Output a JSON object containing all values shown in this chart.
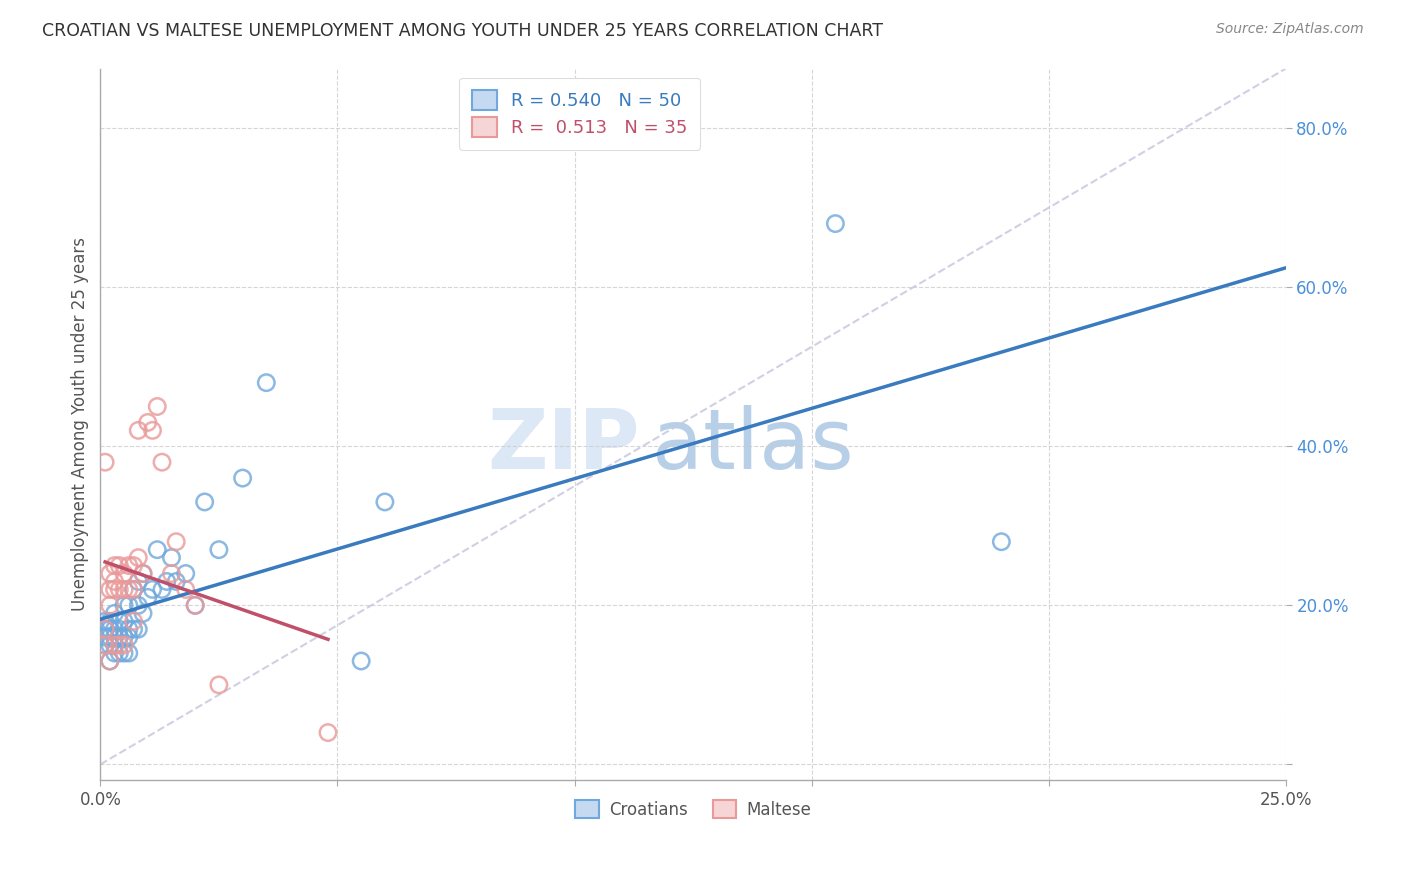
{
  "title": "CROATIAN VS MALTESE UNEMPLOYMENT AMONG YOUTH UNDER 25 YEARS CORRELATION CHART",
  "source": "Source: ZipAtlas.com",
  "ylabel": "Unemployment Among Youth under 25 years",
  "xlim": [
    0.0,
    0.25
  ],
  "ylim": [
    -0.02,
    0.875
  ],
  "croatians_color": "#6fa8dc",
  "maltese_color": "#ea9999",
  "croatians_line_color": "#3a7abf",
  "maltese_line_color": "#c0506a",
  "legend_croatians_label": "Croatians",
  "legend_maltese_label": "Maltese",
  "R_croatians": "0.540",
  "N_croatians": "50",
  "R_maltese": "0.513",
  "N_maltese": "35",
  "bg_color": "#ffffff",
  "grid_color": "#cccccc",
  "title_color": "#333333",
  "source_color": "#888888",
  "axis_label_color": "#555555",
  "right_axis_color": "#4a90d9",
  "watermark_zip_color": "#ddeeff",
  "watermark_atlas_color": "#c0d8ee",
  "croatians_x": [
    0.001,
    0.001,
    0.001,
    0.001,
    0.002,
    0.002,
    0.002,
    0.002,
    0.002,
    0.003,
    0.003,
    0.003,
    0.003,
    0.003,
    0.004,
    0.004,
    0.004,
    0.004,
    0.005,
    0.005,
    0.005,
    0.005,
    0.006,
    0.006,
    0.006,
    0.006,
    0.007,
    0.007,
    0.008,
    0.008,
    0.008,
    0.009,
    0.009,
    0.01,
    0.011,
    0.012,
    0.013,
    0.014,
    0.015,
    0.016,
    0.018,
    0.02,
    0.022,
    0.025,
    0.03,
    0.035,
    0.055,
    0.06,
    0.155,
    0.19
  ],
  "croatians_y": [
    0.15,
    0.16,
    0.17,
    0.18,
    0.13,
    0.15,
    0.16,
    0.17,
    0.18,
    0.14,
    0.15,
    0.16,
    0.17,
    0.19,
    0.14,
    0.16,
    0.17,
    0.18,
    0.14,
    0.16,
    0.18,
    0.2,
    0.14,
    0.16,
    0.17,
    0.2,
    0.17,
    0.22,
    0.17,
    0.2,
    0.23,
    0.19,
    0.24,
    0.21,
    0.22,
    0.27,
    0.22,
    0.23,
    0.26,
    0.23,
    0.24,
    0.2,
    0.33,
    0.27,
    0.36,
    0.48,
    0.13,
    0.33,
    0.68,
    0.28
  ],
  "maltese_x": [
    0.001,
    0.001,
    0.001,
    0.002,
    0.002,
    0.002,
    0.002,
    0.003,
    0.003,
    0.003,
    0.003,
    0.004,
    0.004,
    0.004,
    0.005,
    0.005,
    0.005,
    0.006,
    0.006,
    0.007,
    0.007,
    0.007,
    0.008,
    0.008,
    0.009,
    0.01,
    0.011,
    0.012,
    0.013,
    0.015,
    0.016,
    0.018,
    0.02,
    0.025,
    0.048
  ],
  "maltese_y": [
    0.15,
    0.17,
    0.38,
    0.13,
    0.2,
    0.22,
    0.24,
    0.15,
    0.22,
    0.23,
    0.25,
    0.15,
    0.22,
    0.25,
    0.15,
    0.22,
    0.24,
    0.22,
    0.25,
    0.18,
    0.22,
    0.25,
    0.42,
    0.26,
    0.24,
    0.43,
    0.42,
    0.45,
    0.38,
    0.24,
    0.28,
    0.22,
    0.2,
    0.1,
    0.04
  ]
}
